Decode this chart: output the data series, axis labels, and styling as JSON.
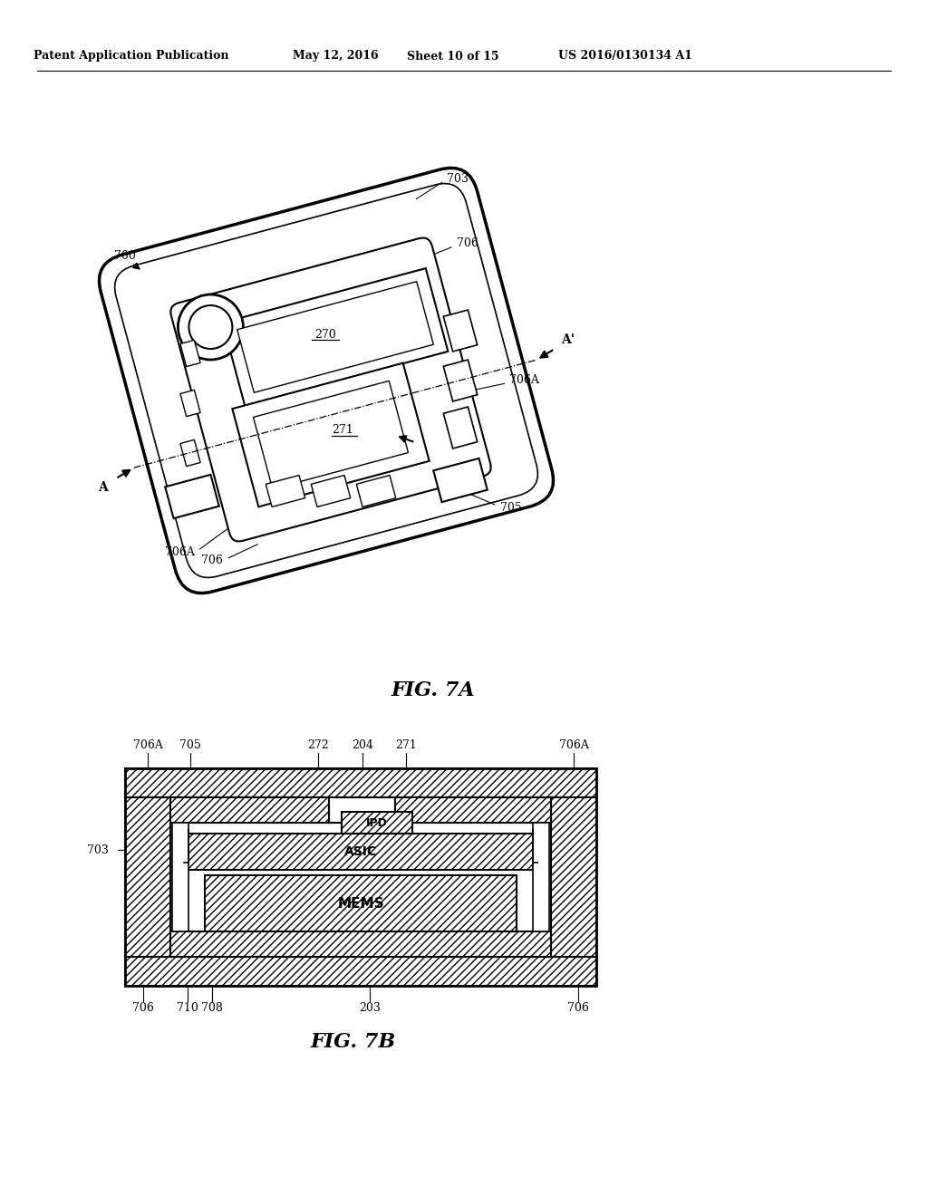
{
  "bg_color": "#ffffff",
  "header_text": "Patent Application Publication",
  "header_date": "May 12, 2016",
  "header_sheet": "Sheet 10 of 15",
  "header_patent": "US 2016/0130134 A1",
  "fig7a_label": "FIG. 7A",
  "fig7b_label": "FIG. 7B",
  "line_color": "#000000"
}
